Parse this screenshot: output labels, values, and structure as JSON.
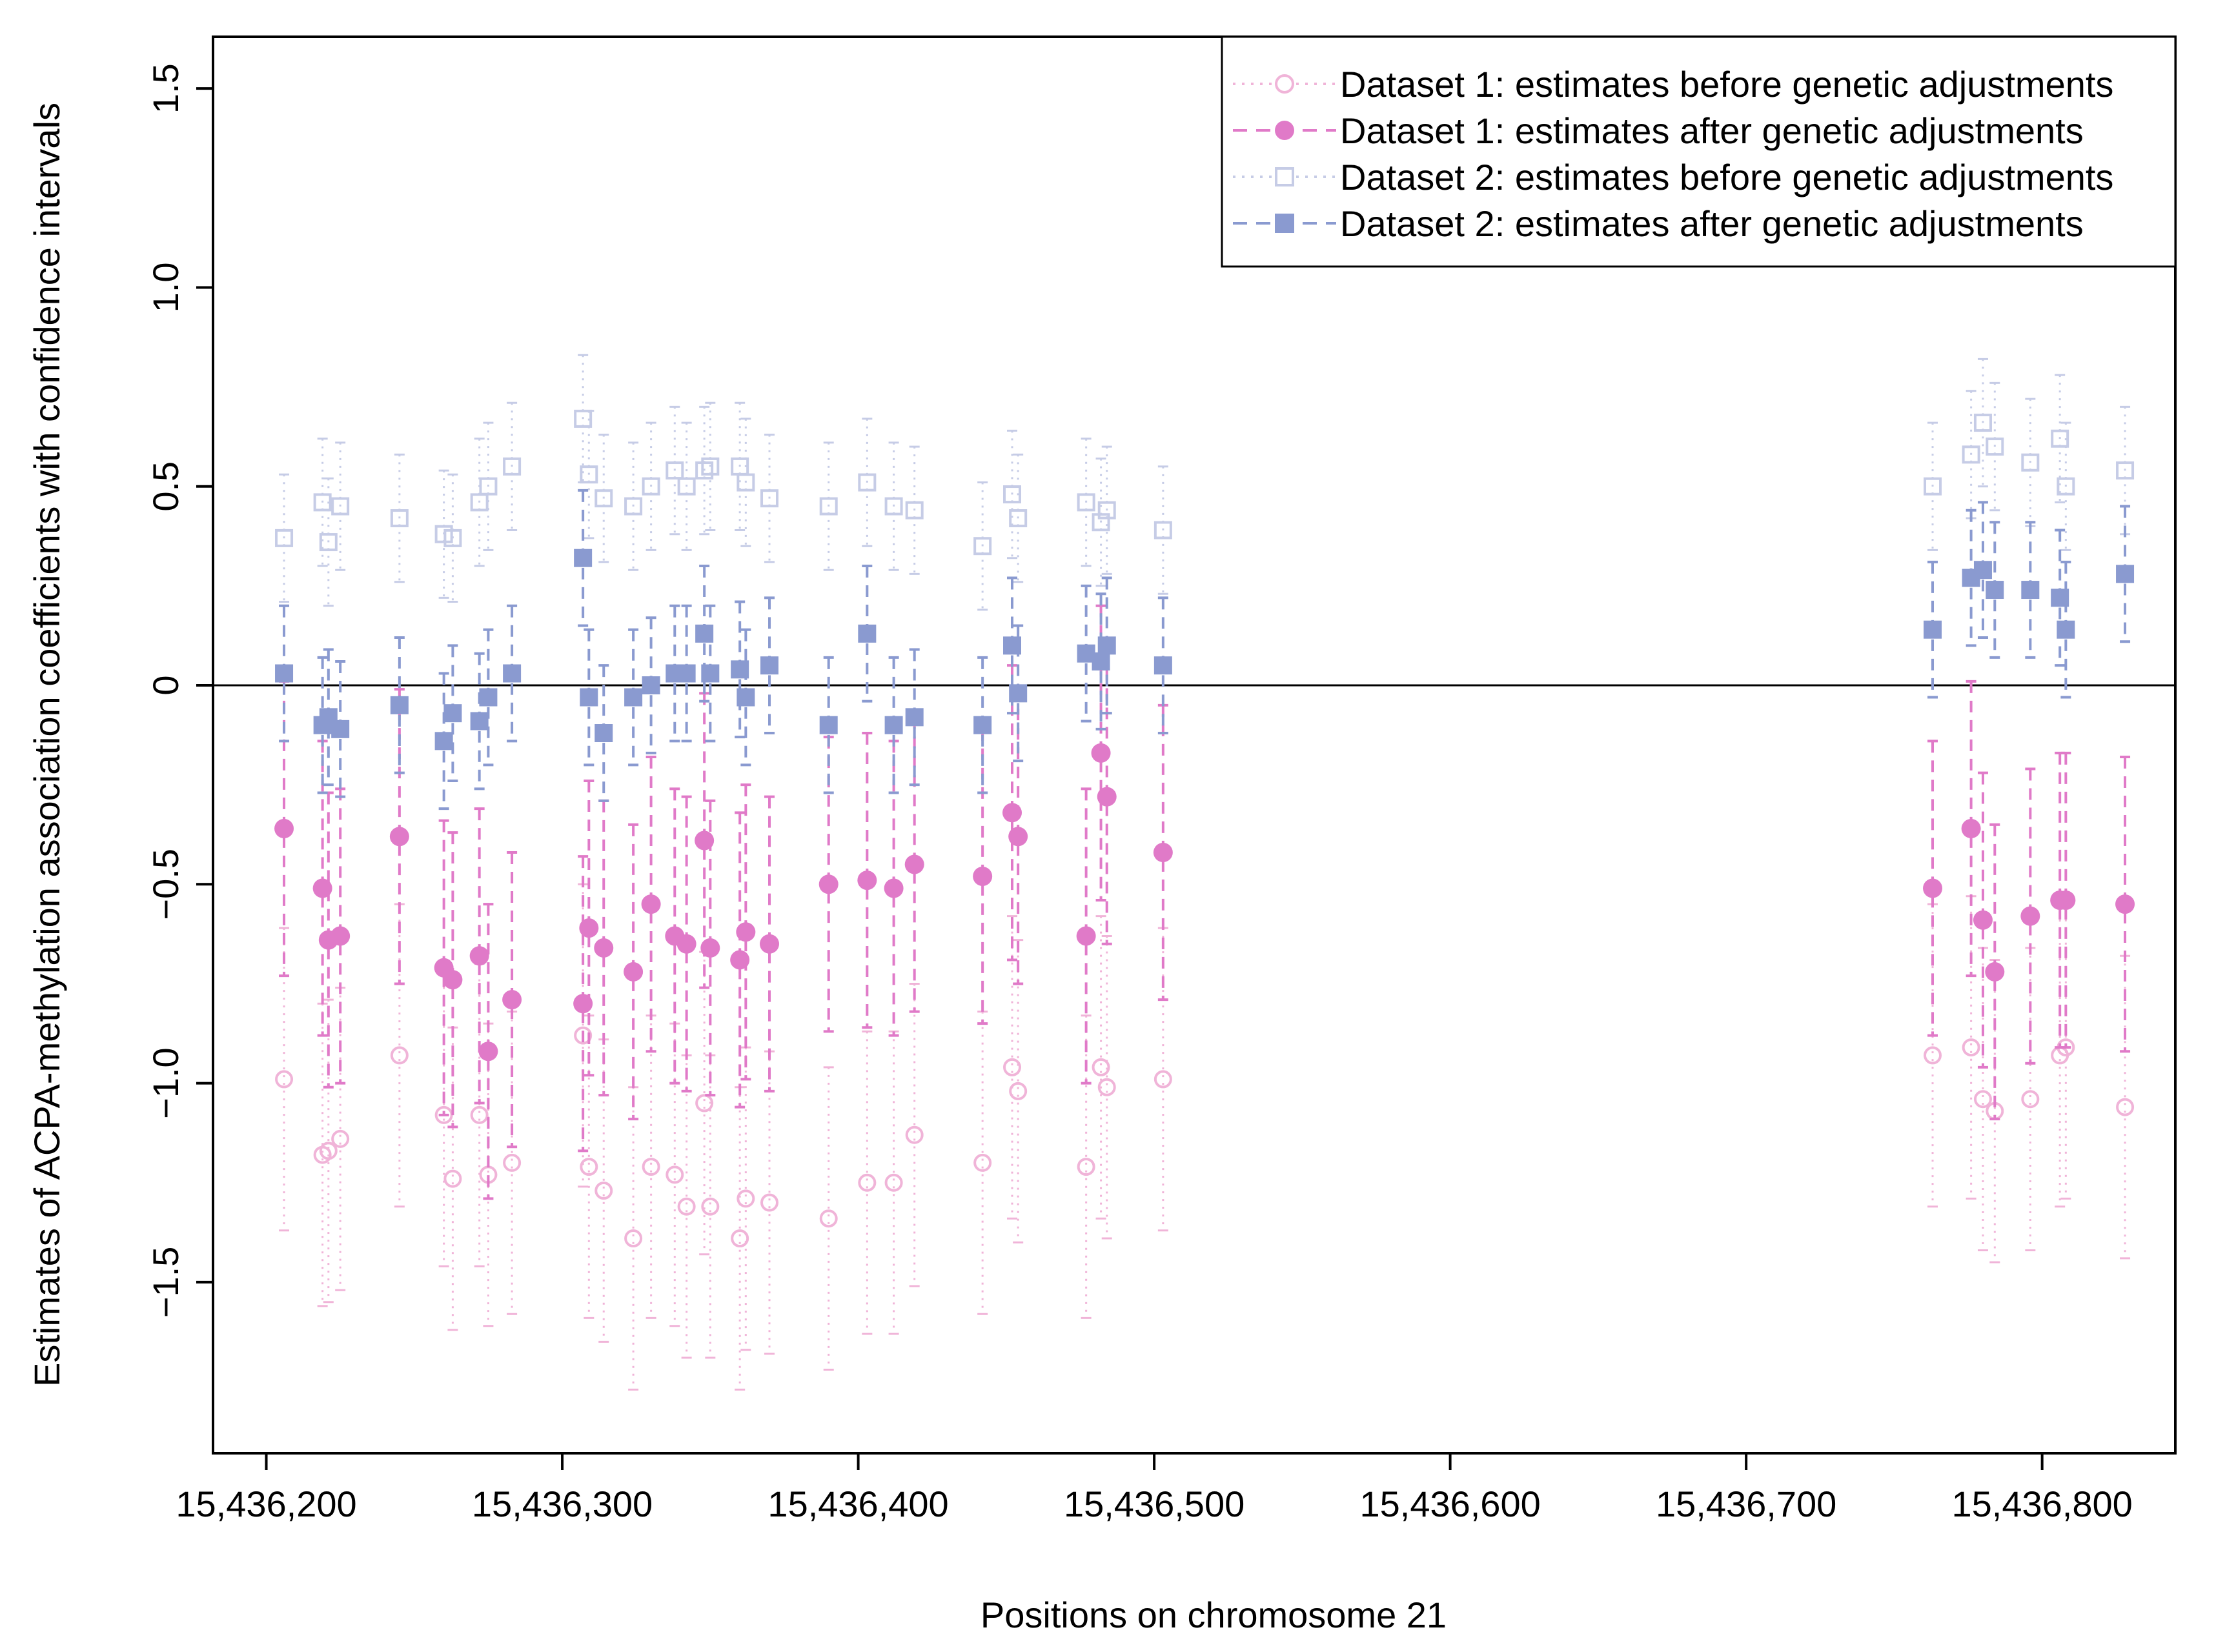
{
  "chart_data": {
    "type": "scatter",
    "title": "",
    "xlabel": "Positions on chromosome 21",
    "ylabel": "Estimates of ACPA-methylation association coefficients with confidence intervals",
    "xlim": [
      15436182,
      15436845
    ],
    "ylim": [
      -1.93,
      1.63
    ],
    "x_ticks": [
      15436200,
      15436300,
      15436400,
      15436500,
      15436600,
      15436700,
      15436800
    ],
    "x_tick_labels": [
      "15,436,200",
      "15,436,300",
      "15,436,400",
      "15,436,500",
      "15,436,600",
      "15,436,700",
      "15,436,800"
    ],
    "y_ticks": [
      -1.5,
      -1.0,
      -0.5,
      0,
      0.5,
      1.0,
      1.5
    ],
    "y_tick_labels": [
      "−1.5",
      "−1.0",
      "−0.5",
      "0",
      "0.5",
      "1.0",
      "1.5"
    ],
    "reference_line": 0,
    "legend_position": "top-right",
    "ci_halfwidth": {
      "d1_before": 0.38,
      "d1_after": 0.37,
      "d2_before": 0.16,
      "d2_after": 0.17
    },
    "positions": [
      15436206,
      15436219,
      15436221,
      15436225,
      15436245,
      15436260,
      15436263,
      15436272,
      15436275,
      15436283,
      15436307,
      15436309,
      15436314,
      15436324,
      15436330,
      15436338,
      15436342,
      15436348,
      15436350,
      15436360,
      15436362,
      15436370,
      15436390,
      15436403,
      15436412,
      15436419,
      15436442,
      15436452,
      15436454,
      15436477,
      15436482,
      15436484,
      15436503,
      15436763,
      15436776,
      15436780,
      15436784,
      15436796,
      15436806,
      15436808,
      15436828
    ],
    "series": [
      {
        "name": "Dataset 1: estimates before genetic adjustments",
        "color": "#f0b4d8",
        "marker": "open-circle",
        "line": "dotted",
        "values": [
          -0.99,
          -1.18,
          -1.17,
          -1.14,
          -0.93,
          -1.08,
          -1.24,
          -1.08,
          -1.23,
          -1.2,
          -0.88,
          -1.21,
          -1.27,
          -1.39,
          -1.21,
          -1.23,
          -1.31,
          -1.05,
          -1.31,
          -1.39,
          -1.29,
          -1.3,
          -1.34,
          -1.25,
          -1.25,
          -1.13,
          -1.2,
          -0.96,
          -1.02,
          -1.21,
          -0.96,
          -1.01,
          -0.99,
          -0.93,
          -0.91,
          -1.04,
          -1.07,
          -1.04,
          -0.93,
          -0.91,
          -1.06
        ]
      },
      {
        "name": "Dataset 1: estimates after genetic adjustments",
        "color": "#e07ac8",
        "marker": "filled-circle",
        "line": "dashed",
        "values": [
          -0.36,
          -0.51,
          -0.64,
          -0.63,
          -0.38,
          -0.71,
          -0.74,
          -0.68,
          -0.92,
          -0.79,
          -0.8,
          -0.61,
          -0.66,
          -0.72,
          -0.55,
          -0.63,
          -0.65,
          -0.39,
          -0.66,
          -0.69,
          -0.62,
          -0.65,
          -0.5,
          -0.49,
          -0.51,
          -0.45,
          -0.48,
          -0.32,
          -0.38,
          -0.63,
          -0.17,
          -0.28,
          -0.42,
          -0.51,
          -0.36,
          -0.59,
          -0.72,
          -0.58,
          -0.54,
          -0.54,
          -0.55
        ]
      },
      {
        "name": "Dataset 2: estimates before genetic adjustments",
        "color": "#c6cce6",
        "marker": "open-square",
        "line": "dotted",
        "values": [
          0.37,
          0.46,
          0.36,
          0.45,
          0.42,
          0.38,
          0.37,
          0.46,
          0.5,
          0.55,
          0.67,
          0.53,
          0.47,
          0.45,
          0.5,
          0.54,
          0.5,
          0.54,
          0.55,
          0.55,
          0.51,
          0.47,
          0.45,
          0.51,
          0.45,
          0.44,
          0.35,
          0.48,
          0.42,
          0.46,
          0.41,
          0.44,
          0.39,
          0.5,
          0.58,
          0.66,
          0.6,
          0.56,
          0.62,
          0.5,
          0.54
        ]
      },
      {
        "name": "Dataset 2: estimates after genetic adjustments",
        "color": "#8a9ad0",
        "marker": "filled-square",
        "line": "dashed",
        "values": [
          0.03,
          -0.1,
          -0.08,
          -0.11,
          -0.05,
          -0.14,
          -0.07,
          -0.09,
          -0.03,
          0.03,
          0.32,
          -0.03,
          -0.12,
          -0.03,
          0.0,
          0.03,
          0.03,
          0.13,
          0.03,
          0.04,
          -0.03,
          0.05,
          -0.1,
          0.13,
          -0.1,
          -0.08,
          -0.1,
          0.1,
          -0.02,
          0.08,
          0.06,
          0.1,
          0.05,
          0.14,
          0.27,
          0.29,
          0.24,
          0.24,
          0.22,
          0.14,
          0.28
        ]
      }
    ]
  }
}
